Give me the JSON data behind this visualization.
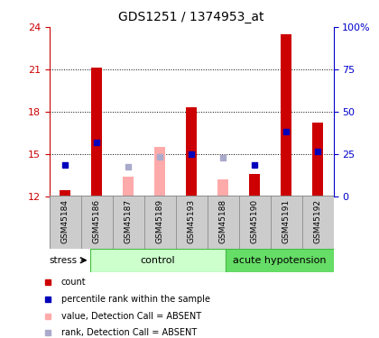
{
  "title": "GDS1251 / 1374953_at",
  "samples": [
    "GSM45184",
    "GSM45186",
    "GSM45187",
    "GSM45189",
    "GSM45193",
    "GSM45188",
    "GSM45190",
    "GSM45191",
    "GSM45192"
  ],
  "n_control": 5,
  "red_bars": [
    12.4,
    21.1,
    null,
    null,
    18.3,
    null,
    13.6,
    23.5,
    17.2
  ],
  "blue_squares": [
    14.2,
    15.8,
    null,
    null,
    15.0,
    null,
    14.2,
    16.6,
    15.2
  ],
  "pink_bars": [
    null,
    null,
    13.4,
    15.5,
    null,
    13.2,
    null,
    null,
    null
  ],
  "lilac_squares": [
    null,
    null,
    14.1,
    14.8,
    null,
    14.7,
    null,
    null,
    null
  ],
  "ymin": 12,
  "ymax": 24,
  "yticks_left": [
    12,
    15,
    18,
    21,
    24
  ],
  "yticks_right": [
    0,
    25,
    50,
    75,
    100
  ],
  "left_tick_color": "#cc0000",
  "right_tick_color": "#0000cc",
  "group_label_control": "control",
  "group_label_acute": "acute hypotension",
  "stress_label": "stress",
  "bar_color_red": "#cc0000",
  "bar_color_pink": "#ffaaaa",
  "sq_color_blue": "#0000bb",
  "sq_color_lilac": "#aaaacc",
  "group_bg_light": "#ccffcc",
  "group_bg_dark": "#66dd66",
  "sample_bg_color": "#cccccc",
  "bar_width": 0.35,
  "sq_size": 5
}
